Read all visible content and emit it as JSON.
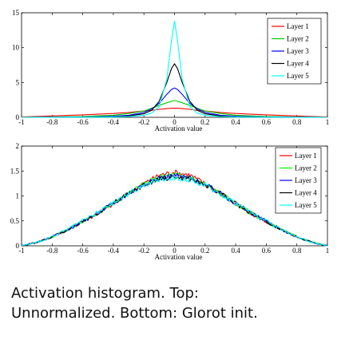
{
  "caption": {
    "line1": "Activation histogram. Top:",
    "line2": "Unnormalized. Bottom: Glorot init."
  },
  "chart_data": [
    {
      "type": "line",
      "title": "",
      "xlabel": "Activation value",
      "ylabel": "",
      "xlim": [
        -1,
        1
      ],
      "ylim": [
        0,
        15
      ],
      "xticks": [
        -1,
        -0.8,
        -0.6,
        -0.4,
        -0.2,
        0,
        0.2,
        0.4,
        0.6,
        0.8,
        1
      ],
      "xtick_labels": [
        "-1",
        "-0.8",
        "-0.6",
        "-0.4",
        "-0.2",
        "0",
        "0.2",
        "0.4",
        "0.6",
        "0.8",
        "1"
      ],
      "yticks": [
        0,
        5,
        10,
        15
      ],
      "ytick_labels": [
        "0",
        "5",
        "10",
        "15"
      ],
      "legend_position": "top-right",
      "x": [
        -1,
        -0.8,
        -0.6,
        -0.4,
        -0.3,
        -0.2,
        -0.15,
        -0.1,
        -0.05,
        -0.02,
        0,
        0.02,
        0.05,
        0.1,
        0.15,
        0.2,
        0.3,
        0.4,
        0.6,
        0.8,
        1
      ],
      "series": [
        {
          "name": "Layer 1",
          "color": "#ff0000",
          "values": [
            0.05,
            0.2,
            0.35,
            0.55,
            0.7,
            0.9,
            1.0,
            1.15,
            1.25,
            1.3,
            1.3,
            1.3,
            1.25,
            1.15,
            1.0,
            0.9,
            0.7,
            0.55,
            0.35,
            0.2,
            0.05
          ]
        },
        {
          "name": "Layer 2",
          "color": "#00cc00",
          "values": [
            0,
            0.05,
            0.12,
            0.3,
            0.55,
            0.9,
            1.3,
            1.7,
            2.1,
            2.3,
            2.4,
            2.3,
            2.1,
            1.7,
            1.3,
            0.9,
            0.55,
            0.3,
            0.12,
            0.05,
            0
          ]
        },
        {
          "name": "Layer 3",
          "color": "#0000ff",
          "values": [
            0,
            0.02,
            0.05,
            0.15,
            0.3,
            0.7,
            1.2,
            2.0,
            3.3,
            4.0,
            4.2,
            4.0,
            3.3,
            2.0,
            1.2,
            0.7,
            0.3,
            0.15,
            0.05,
            0.02,
            0
          ]
        },
        {
          "name": "Layer 4",
          "color": "#000000",
          "values": [
            0,
            0.01,
            0.03,
            0.08,
            0.2,
            0.5,
            1.0,
            2.3,
            5.0,
            7.0,
            7.7,
            7.0,
            5.0,
            2.3,
            1.0,
            0.5,
            0.2,
            0.08,
            0.03,
            0.01,
            0
          ]
        },
        {
          "name": "Layer 5",
          "color": "#00ffff",
          "values": [
            0,
            0.01,
            0.02,
            0.05,
            0.1,
            0.3,
            0.6,
            1.5,
            5.5,
            11.0,
            13.8,
            11.0,
            5.5,
            1.5,
            0.6,
            0.3,
            0.1,
            0.05,
            0.02,
            0.01,
            0
          ]
        }
      ]
    },
    {
      "type": "line",
      "title": "",
      "xlabel": "Activation value",
      "ylabel": "",
      "xlim": [
        -1,
        1
      ],
      "ylim": [
        0,
        2
      ],
      "xticks": [
        -1,
        -0.8,
        -0.6,
        -0.4,
        -0.2,
        0,
        0.2,
        0.4,
        0.6,
        0.8,
        1
      ],
      "xtick_labels": [
        "-1",
        "-0.8",
        "-0.6",
        "-0.4",
        "-0.2",
        "0",
        "0.2",
        "0.4",
        "0.6",
        "0.8",
        "1"
      ],
      "yticks": [
        0,
        0.5,
        1,
        1.5,
        2
      ],
      "ytick_labels": [
        "0",
        "0.5",
        "1",
        "1.5",
        "2"
      ],
      "legend_position": "top-right",
      "x": [
        -1,
        -0.9,
        -0.8,
        -0.7,
        -0.6,
        -0.5,
        -0.4,
        -0.3,
        -0.2,
        -0.1,
        0,
        0.1,
        0.2,
        0.3,
        0.4,
        0.5,
        0.6,
        0.7,
        0.8,
        0.9,
        1
      ],
      "series": [
        {
          "name": "Layer 1",
          "color": "#ff0000",
          "values": [
            0.0,
            0.07,
            0.18,
            0.32,
            0.48,
            0.65,
            0.84,
            1.05,
            1.25,
            1.42,
            1.48,
            1.42,
            1.25,
            1.05,
            0.84,
            0.65,
            0.48,
            0.32,
            0.18,
            0.07,
            0.0
          ]
        },
        {
          "name": "Layer 2",
          "color": "#00ff00",
          "values": [
            0.0,
            0.07,
            0.18,
            0.32,
            0.48,
            0.66,
            0.85,
            1.05,
            1.24,
            1.38,
            1.43,
            1.38,
            1.24,
            1.05,
            0.85,
            0.66,
            0.48,
            0.32,
            0.18,
            0.07,
            0.0
          ]
        },
        {
          "name": "Layer 3",
          "color": "#0000ff",
          "values": [
            0.0,
            0.07,
            0.18,
            0.32,
            0.49,
            0.66,
            0.85,
            1.05,
            1.23,
            1.36,
            1.41,
            1.36,
            1.23,
            1.05,
            0.85,
            0.66,
            0.49,
            0.32,
            0.18,
            0.07,
            0.0
          ]
        },
        {
          "name": "Layer 4",
          "color": "#000000",
          "values": [
            0.0,
            0.07,
            0.18,
            0.32,
            0.49,
            0.66,
            0.85,
            1.04,
            1.22,
            1.34,
            1.38,
            1.34,
            1.22,
            1.04,
            0.85,
            0.66,
            0.49,
            0.32,
            0.18,
            0.07,
            0.0
          ]
        },
        {
          "name": "Layer 5",
          "color": "#00ffff",
          "values": [
            0.0,
            0.07,
            0.18,
            0.33,
            0.5,
            0.67,
            0.86,
            1.04,
            1.21,
            1.32,
            1.36,
            1.32,
            1.21,
            1.04,
            0.86,
            0.67,
            0.5,
            0.33,
            0.18,
            0.07,
            0.0
          ]
        }
      ]
    }
  ]
}
